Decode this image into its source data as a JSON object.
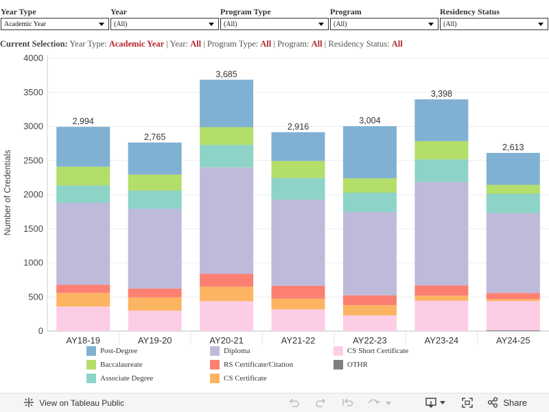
{
  "filters": [
    {
      "label": "Year  Type",
      "value": "Academic Year"
    },
    {
      "label": "Year",
      "value": "(All)"
    },
    {
      "label": "Program  Type",
      "value": "(All)"
    },
    {
      "label": "Program",
      "value": "(All)"
    },
    {
      "label": "Residency Status",
      "value": "(All)"
    }
  ],
  "selection": {
    "prefix": "Current Selection:",
    "year_type_label": "Year Type:",
    "year_type_value": "Academic Year",
    "year_label": "Year:",
    "year_value": "All",
    "program_type_label": "Program Type:",
    "program_type_value": "All",
    "program_label": "Program:",
    "program_value": "All",
    "residency_label": "Residency Status:",
    "residency_value": "All",
    "sep": "|"
  },
  "chart_data": {
    "type": "bar",
    "stacked": true,
    "ylabel": "Number of Credentials",
    "xlabel": "",
    "ylim": [
      0,
      4000
    ],
    "yticks": [
      0,
      500,
      1000,
      1500,
      2000,
      2500,
      3000,
      3500,
      4000
    ],
    "categories": [
      "AY18-19",
      "AY19-20",
      "AY20-21",
      "AY21-22",
      "AY22-23",
      "AY23-24",
      "AY24-25"
    ],
    "totals": [
      "2,994",
      "2,765",
      "3,685",
      "2,916",
      "3,004",
      "3,398",
      "2,613"
    ],
    "series": [
      {
        "name": "OTHR",
        "color": "#7f7f7f",
        "values": [
          0,
          0,
          0,
          0,
          0,
          0,
          10
        ]
      },
      {
        "name": "CS Short Certificate",
        "color": "#fccde5",
        "values": [
          360,
          300,
          440,
          320,
          230,
          445,
          430
        ]
      },
      {
        "name": "CS Certificate",
        "color": "#fdb462",
        "values": [
          200,
          195,
          210,
          155,
          150,
          75,
          30
        ]
      },
      {
        "name": "RS Certificate/Citation",
        "color": "#fb8072",
        "values": [
          120,
          130,
          190,
          190,
          145,
          150,
          90
        ]
      },
      {
        "name": "Diploma",
        "color": "#bebada",
        "values": [
          1200,
          1170,
          1560,
          1265,
          1220,
          1515,
          1170
        ]
      },
      {
        "name": "Associate Degree",
        "color": "#8dd3c7",
        "values": [
          255,
          265,
          330,
          315,
          285,
          335,
          285
        ]
      },
      {
        "name": "Baccalaureate",
        "color": "#b3de69",
        "values": [
          275,
          235,
          260,
          250,
          210,
          265,
          130
        ]
      },
      {
        "name": "Post-Degree",
        "color": "#80b1d3",
        "values": [
          584,
          470,
          695,
          421,
          764,
          613,
          468
        ]
      }
    ]
  },
  "legend": [
    {
      "name": "Post-Degree",
      "color": "#80b1d3"
    },
    {
      "name": "Baccalaureate",
      "color": "#b3de69"
    },
    {
      "name": "Associate Degree",
      "color": "#8dd3c7"
    },
    {
      "name": "Diploma",
      "color": "#bebada"
    },
    {
      "name": "RS Certificate/Citation",
      "color": "#fb8072"
    },
    {
      "name": "CS Certificate",
      "color": "#fdb462"
    },
    {
      "name": "CS Short Certificate",
      "color": "#fccde5"
    },
    {
      "name": "OTHR",
      "color": "#7f7f7f"
    }
  ],
  "footer": {
    "view_label": "View on Tableau Public",
    "share_label": "Share"
  }
}
